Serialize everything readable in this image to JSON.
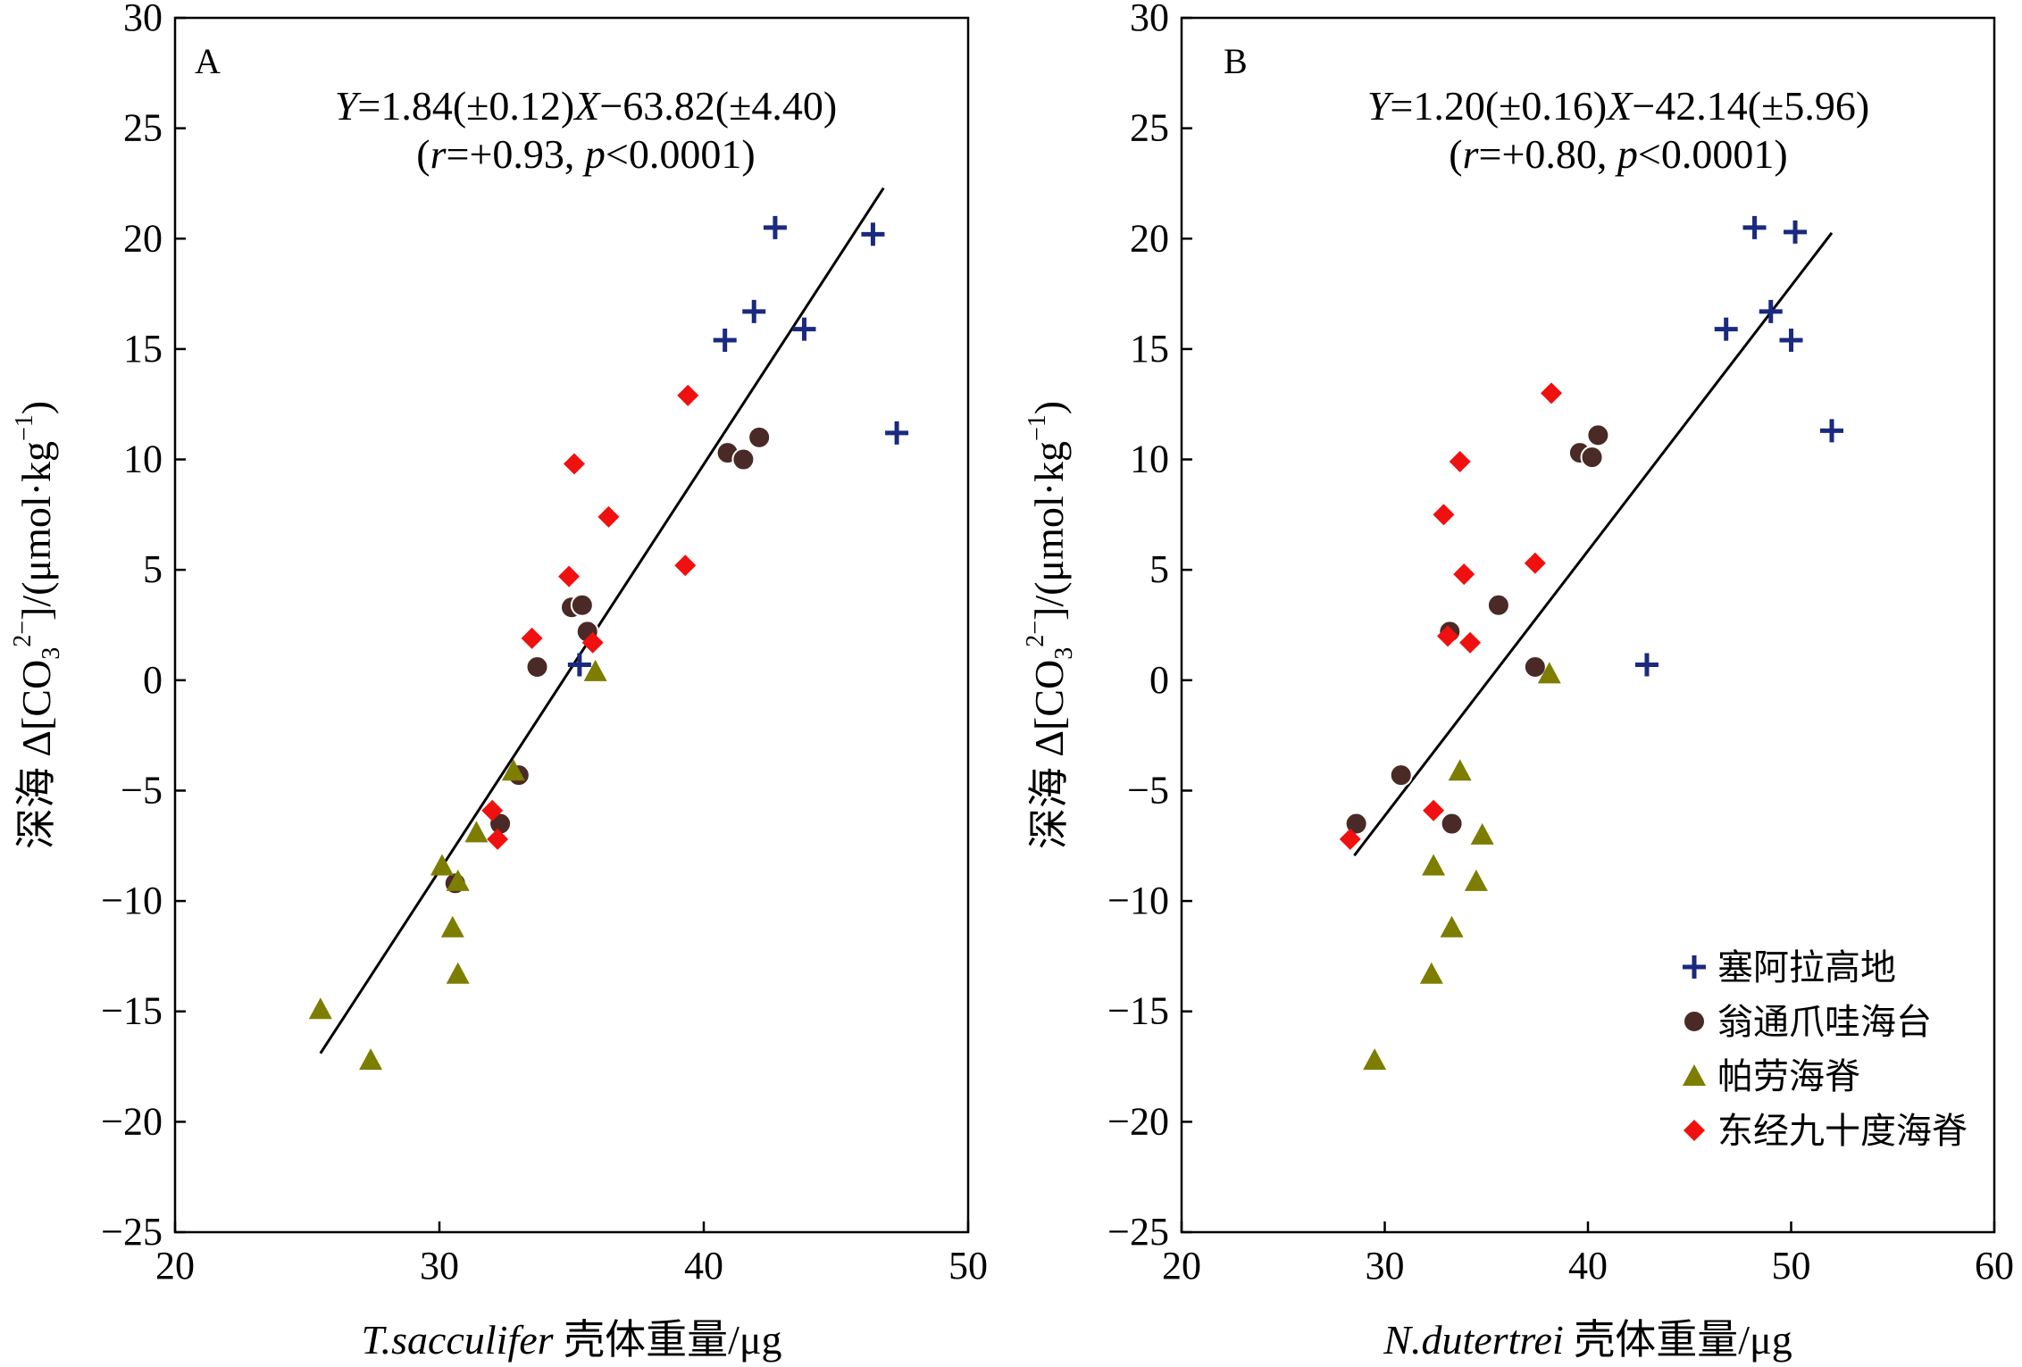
{
  "colors": {
    "cross": "#1a2a80",
    "circle": "#4a2a26",
    "triangle": "#7d7d00",
    "diamond": "#f01010",
    "line": "#000000"
  },
  "legend_entries": [
    {
      "name": "塞阿拉高地",
      "marker": "cross"
    },
    {
      "name": "翁通爪哇海台",
      "marker": "circle"
    },
    {
      "name": "帕劳海脊",
      "marker": "triangle"
    },
    {
      "name": "东经九十度海脊",
      "marker": "diamond"
    }
  ],
  "chart_data": [
    {
      "type": "scatter",
      "panel_label": "A",
      "equation": {
        "y": "Y",
        "eq_part1": "=1.84(±0.12)",
        "x": "X",
        "eq_part2": "−63.82(±4.40)",
        "open": "(",
        "r": "r",
        "r_val": "=+0.93, ",
        "p": "p",
        "p_val": "<0.0001)"
      },
      "xlabel": {
        "italic": "T.sacculifer",
        "rest": " 壳体重量/μg"
      },
      "ylabel": {
        "prefix": "深海 Δ[CO",
        "sub": "3",
        "sup": "2−",
        "mid": "]/(μmol·kg",
        "sup2": "−1",
        "end": ")"
      },
      "xlim": [
        20,
        50
      ],
      "ylim": [
        -25,
        30
      ],
      "xticks": [
        "20",
        "30",
        "40",
        "50"
      ],
      "yticks": [
        "30",
        "25",
        "20",
        "15",
        "10",
        "5",
        "0",
        "−5",
        "−10",
        "−15",
        "−20",
        "−25"
      ],
      "legend": false,
      "regression": {
        "slope": 1.84,
        "intercept": -63.82,
        "x_range": [
          25.5,
          46.8
        ]
      },
      "series": [
        {
          "name": "塞阿拉高地",
          "marker": "cross",
          "points": [
            [
              42.7,
              20.5
            ],
            [
              46.4,
              20.2
            ],
            [
              41.9,
              16.7
            ],
            [
              40.8,
              15.4
            ],
            [
              43.8,
              15.9
            ],
            [
              47.3,
              11.2
            ],
            [
              35.3,
              0.7
            ]
          ]
        },
        {
          "name": "翁通爪哇海台",
          "marker": "circle",
          "points": [
            [
              40.9,
              10.3
            ],
            [
              41.5,
              10.0
            ],
            [
              42.1,
              11.0
            ],
            [
              35.0,
              3.3
            ],
            [
              35.4,
              3.4
            ],
            [
              35.6,
              2.2
            ],
            [
              33.7,
              0.6
            ],
            [
              33.0,
              -4.3
            ],
            [
              32.3,
              -6.5
            ],
            [
              30.6,
              -9.2
            ]
          ]
        },
        {
          "name": "帕劳海脊",
          "marker": "triangle",
          "points": [
            [
              35.9,
              0.4
            ],
            [
              32.8,
              -4.1
            ],
            [
              31.4,
              -6.9
            ],
            [
              30.1,
              -8.4
            ],
            [
              30.7,
              -9.1
            ],
            [
              30.5,
              -11.2
            ],
            [
              30.7,
              -13.3
            ],
            [
              25.5,
              -14.9
            ],
            [
              27.4,
              -17.2
            ]
          ]
        },
        {
          "name": "东经九十度海脊",
          "marker": "diamond",
          "points": [
            [
              39.4,
              12.9
            ],
            [
              35.1,
              9.8
            ],
            [
              36.4,
              7.4
            ],
            [
              34.9,
              4.7
            ],
            [
              39.3,
              5.2
            ],
            [
              33.5,
              1.9
            ],
            [
              35.8,
              1.7
            ],
            [
              32.0,
              -5.9
            ],
            [
              32.2,
              -7.2
            ]
          ]
        }
      ]
    },
    {
      "type": "scatter",
      "panel_label": "B",
      "equation": {
        "y": "Y",
        "eq_part1": "=1.20(±0.16)",
        "x": "X",
        "eq_part2": "−42.14(±5.96)",
        "open": "(",
        "r": "r",
        "r_val": "=+0.80, ",
        "p": "p",
        "p_val": "<0.0001)"
      },
      "xlabel": {
        "italic": "N.dutertrei",
        "rest": " 壳体重量/μg"
      },
      "ylabel": {
        "prefix": "深海 Δ[CO",
        "sub": "3",
        "sup": "2−",
        "mid": "]/(μmol·kg",
        "sup2": "−1",
        "end": ")"
      },
      "xlim": [
        20,
        60
      ],
      "ylim": [
        -25,
        30
      ],
      "xticks": [
        "20",
        "30",
        "40",
        "50",
        "60"
      ],
      "yticks": [
        "30",
        "25",
        "20",
        "15",
        "10",
        "5",
        "0",
        "−5",
        "−10",
        "−15",
        "−20",
        "−25"
      ],
      "legend": true,
      "regression": {
        "slope": 1.2,
        "intercept": -42.14,
        "x_range": [
          28.5,
          52.0
        ]
      },
      "series": [
        {
          "name": "塞阿拉高地",
          "marker": "cross",
          "points": [
            [
              48.2,
              20.5
            ],
            [
              50.2,
              20.3
            ],
            [
              49.0,
              16.7
            ],
            [
              46.8,
              15.9
            ],
            [
              50.0,
              15.4
            ],
            [
              52.0,
              11.3
            ],
            [
              42.9,
              0.7
            ]
          ]
        },
        {
          "name": "翁通爪哇海台",
          "marker": "circle",
          "points": [
            [
              39.6,
              10.3
            ],
            [
              40.2,
              10.1
            ],
            [
              40.5,
              11.1
            ],
            [
              35.6,
              3.4
            ],
            [
              33.2,
              2.2
            ],
            [
              37.4,
              0.6
            ],
            [
              30.8,
              -4.3
            ],
            [
              28.6,
              -6.5
            ],
            [
              33.3,
              -6.5
            ]
          ]
        },
        {
          "name": "帕劳海脊",
          "marker": "triangle",
          "points": [
            [
              38.1,
              0.3
            ],
            [
              33.7,
              -4.1
            ],
            [
              34.8,
              -7.0
            ],
            [
              32.4,
              -8.4
            ],
            [
              34.5,
              -9.1
            ],
            [
              33.3,
              -11.2
            ],
            [
              32.3,
              -13.3
            ],
            [
              29.5,
              -17.2
            ]
          ]
        },
        {
          "name": "东经九十度海脊",
          "marker": "diamond",
          "points": [
            [
              38.2,
              13.0
            ],
            [
              33.7,
              9.9
            ],
            [
              32.9,
              7.5
            ],
            [
              33.9,
              4.8
            ],
            [
              37.4,
              5.3
            ],
            [
              33.1,
              2.0
            ],
            [
              34.2,
              1.7
            ],
            [
              32.4,
              -5.9
            ],
            [
              28.3,
              -7.2
            ]
          ]
        }
      ]
    }
  ]
}
